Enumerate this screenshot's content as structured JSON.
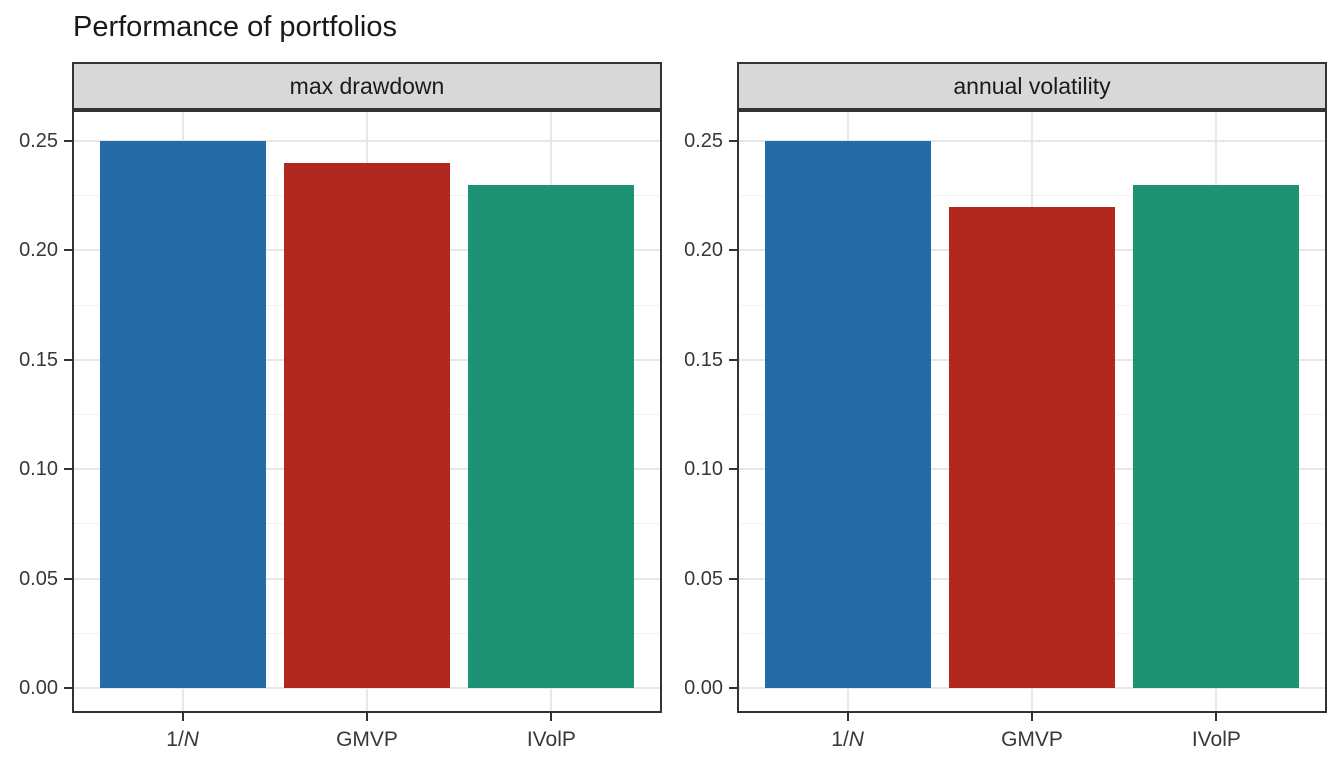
{
  "chart_data": {
    "type": "bar",
    "title": "Performance of portfolios",
    "categories": [
      "1/N",
      "GMVP",
      "IVolP"
    ],
    "categories_display": [
      {
        "prefix": "1/",
        "italic": "N"
      },
      {
        "prefix": "GMVP",
        "italic": ""
      },
      {
        "prefix": "IVolP",
        "italic": ""
      }
    ],
    "series": [
      {
        "name": "max drawdown",
        "values": [
          0.25,
          0.24,
          0.23
        ]
      },
      {
        "name": "annual volatility",
        "values": [
          0.25,
          0.22,
          0.23
        ]
      }
    ],
    "bar_colors": [
      "#246BA8",
      "#B1281E",
      "#1D9374"
    ],
    "y_tick_labels": [
      "0.00",
      "0.05",
      "0.10",
      "0.15",
      "0.20",
      "0.25"
    ],
    "y_tick_values": [
      0,
      0.05,
      0.1,
      0.15,
      0.2,
      0.25
    ],
    "y_minor_values": [
      0.025,
      0.075,
      0.125,
      0.175,
      0.225
    ],
    "ylim": [
      -0.0125,
      0.2625
    ],
    "xlabel": "",
    "ylabel": "",
    "legend": "none",
    "grid": "major and minor horizontal, major vertical at categories",
    "facet_layout": "two panels side by side, shared y scale",
    "colors": {
      "strip_background": "#D8D8D8",
      "panel_border": "#333333",
      "grid_major": "#E7E7E7",
      "grid_minor": "#F2F2F2",
      "tick_mark": "#333333",
      "axis_text": "#383838",
      "title_text": "#191919"
    }
  }
}
